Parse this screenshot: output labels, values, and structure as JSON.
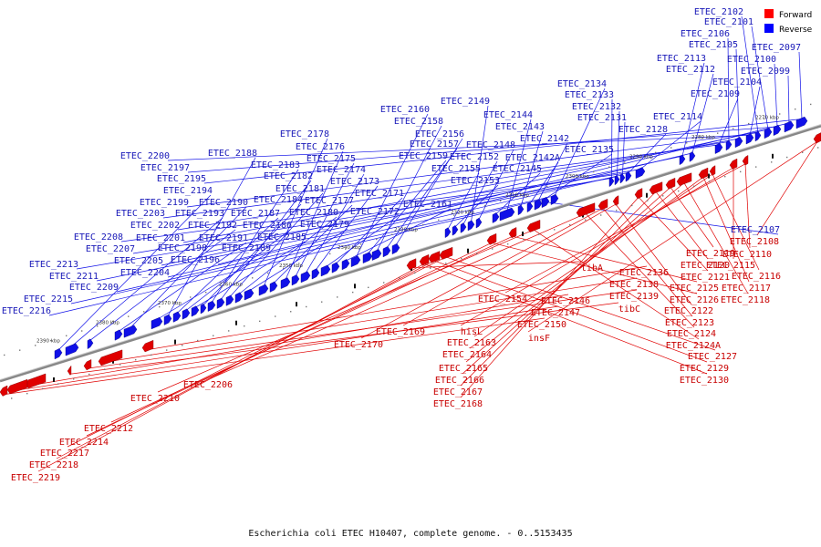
{
  "caption": "Escherichia coli ETEC H10407, complete genome. - 0..5153435",
  "legend": [
    {
      "label": "Forward",
      "color": "#ff0000"
    },
    {
      "label": "Reverse",
      "color": "#0000ff"
    }
  ],
  "colors": {
    "forward": "#e00000",
    "reverse": "#1010e8",
    "forward_label": "#c80000",
    "reverse_label": "#1818b8",
    "axis": "#888888"
  },
  "ticks": [
    "2270 kbp",
    "2280 kbp",
    "2290 kbp",
    "2300 kbp",
    "2310 kbp",
    "2320 kbp",
    "2330 kbp",
    "2340 kbp",
    "2350 kbp",
    "2360 kbp",
    "2370 kbp",
    "2380 kbp",
    "2390 kbp"
  ],
  "reverse_labels": [
    "ETEC_2097",
    "ETEC_2099",
    "ETEC_2100",
    "ETEC_2101",
    "ETEC_2102",
    "ETEC_2104",
    "ETEC_2105",
    "ETEC_2106",
    "ETEC_2109",
    "ETEC_2112",
    "ETEC_2113",
    "ETEC_2114",
    "ETEC_2128",
    "ETEC_2131",
    "ETEC_2132",
    "ETEC_2133",
    "ETEC_2134",
    "ETEC_2135",
    "ETEC_2142",
    "ETEC_2142A",
    "ETEC_2143",
    "ETEC_2144",
    "ETEC_2145",
    "ETEC_2148",
    "ETEC_2149",
    "ETEC_2152",
    "ETEC_2153",
    "ETEC_2155",
    "ETEC_2156",
    "ETEC_2157",
    "ETEC_2158",
    "ETEC_2159",
    "ETEC_2160",
    "ETEC_2161",
    "ETEC_2171",
    "ETEC_2172",
    "ETEC_2173",
    "ETEC_2174",
    "ETEC_2175",
    "ETEC_2176",
    "ETEC_2177",
    "ETEC_2178",
    "ETEC_2179",
    "ETEC_2180",
    "ETEC_2181",
    "ETEC_2182",
    "ETEC_2183",
    "ETEC_2184",
    "ETEC_2185",
    "ETEC_2186",
    "ETEC_2187",
    "ETEC_2188",
    "ETEC_2189",
    "ETEC_2190",
    "ETEC_2191",
    "ETEC_2192",
    "ETEC_2193",
    "ETEC_2194",
    "ETEC_2195",
    "ETEC_2196",
    "ETEC_2197",
    "ETEC_2198",
    "ETEC_2199",
    "ETEC_2200",
    "ETEC_2201",
    "ETEC_2202",
    "ETEC_2203",
    "ETEC_2204",
    "ETEC_2205",
    "ETEC_2207",
    "ETEC_2208",
    "ETEC_2209",
    "ETEC_2211",
    "ETEC_2213",
    "ETEC_2215",
    "ETEC_2216",
    "ETEC_2107"
  ],
  "forward_labels": [
    "ETEC_2108",
    "ETEC_2110",
    "ETEC_2115",
    "ETEC_2116",
    "ETEC_2117",
    "ETEC_2118",
    "ETEC_2119",
    "ETEC_2120",
    "ETEC_2121",
    "ETEC_2122",
    "ETEC_2123",
    "ETEC_2124",
    "ETEC_2124A",
    "ETEC_2125",
    "ETEC_2126",
    "ETEC_2127",
    "ETEC_2129",
    "ETEC_2130",
    "tibA",
    "ETEC_2136",
    "ETEC_2138",
    "ETEC_2139",
    "tibC",
    "ETEC_2146",
    "ETEC_2147",
    "ETEC_2150",
    "insF",
    "ETEC_2154",
    "hisL",
    "ETEC_2163",
    "ETEC_2164",
    "ETEC_2165",
    "ETEC_2166",
    "ETEC_2167",
    "ETEC_2168",
    "ETEC_2169",
    "ETEC_2170",
    "ETEC_2206",
    "ETEC_2210",
    "ETEC_2212",
    "ETEC_2214",
    "ETEC_2217",
    "ETEC_2218",
    "ETEC_2219"
  ]
}
